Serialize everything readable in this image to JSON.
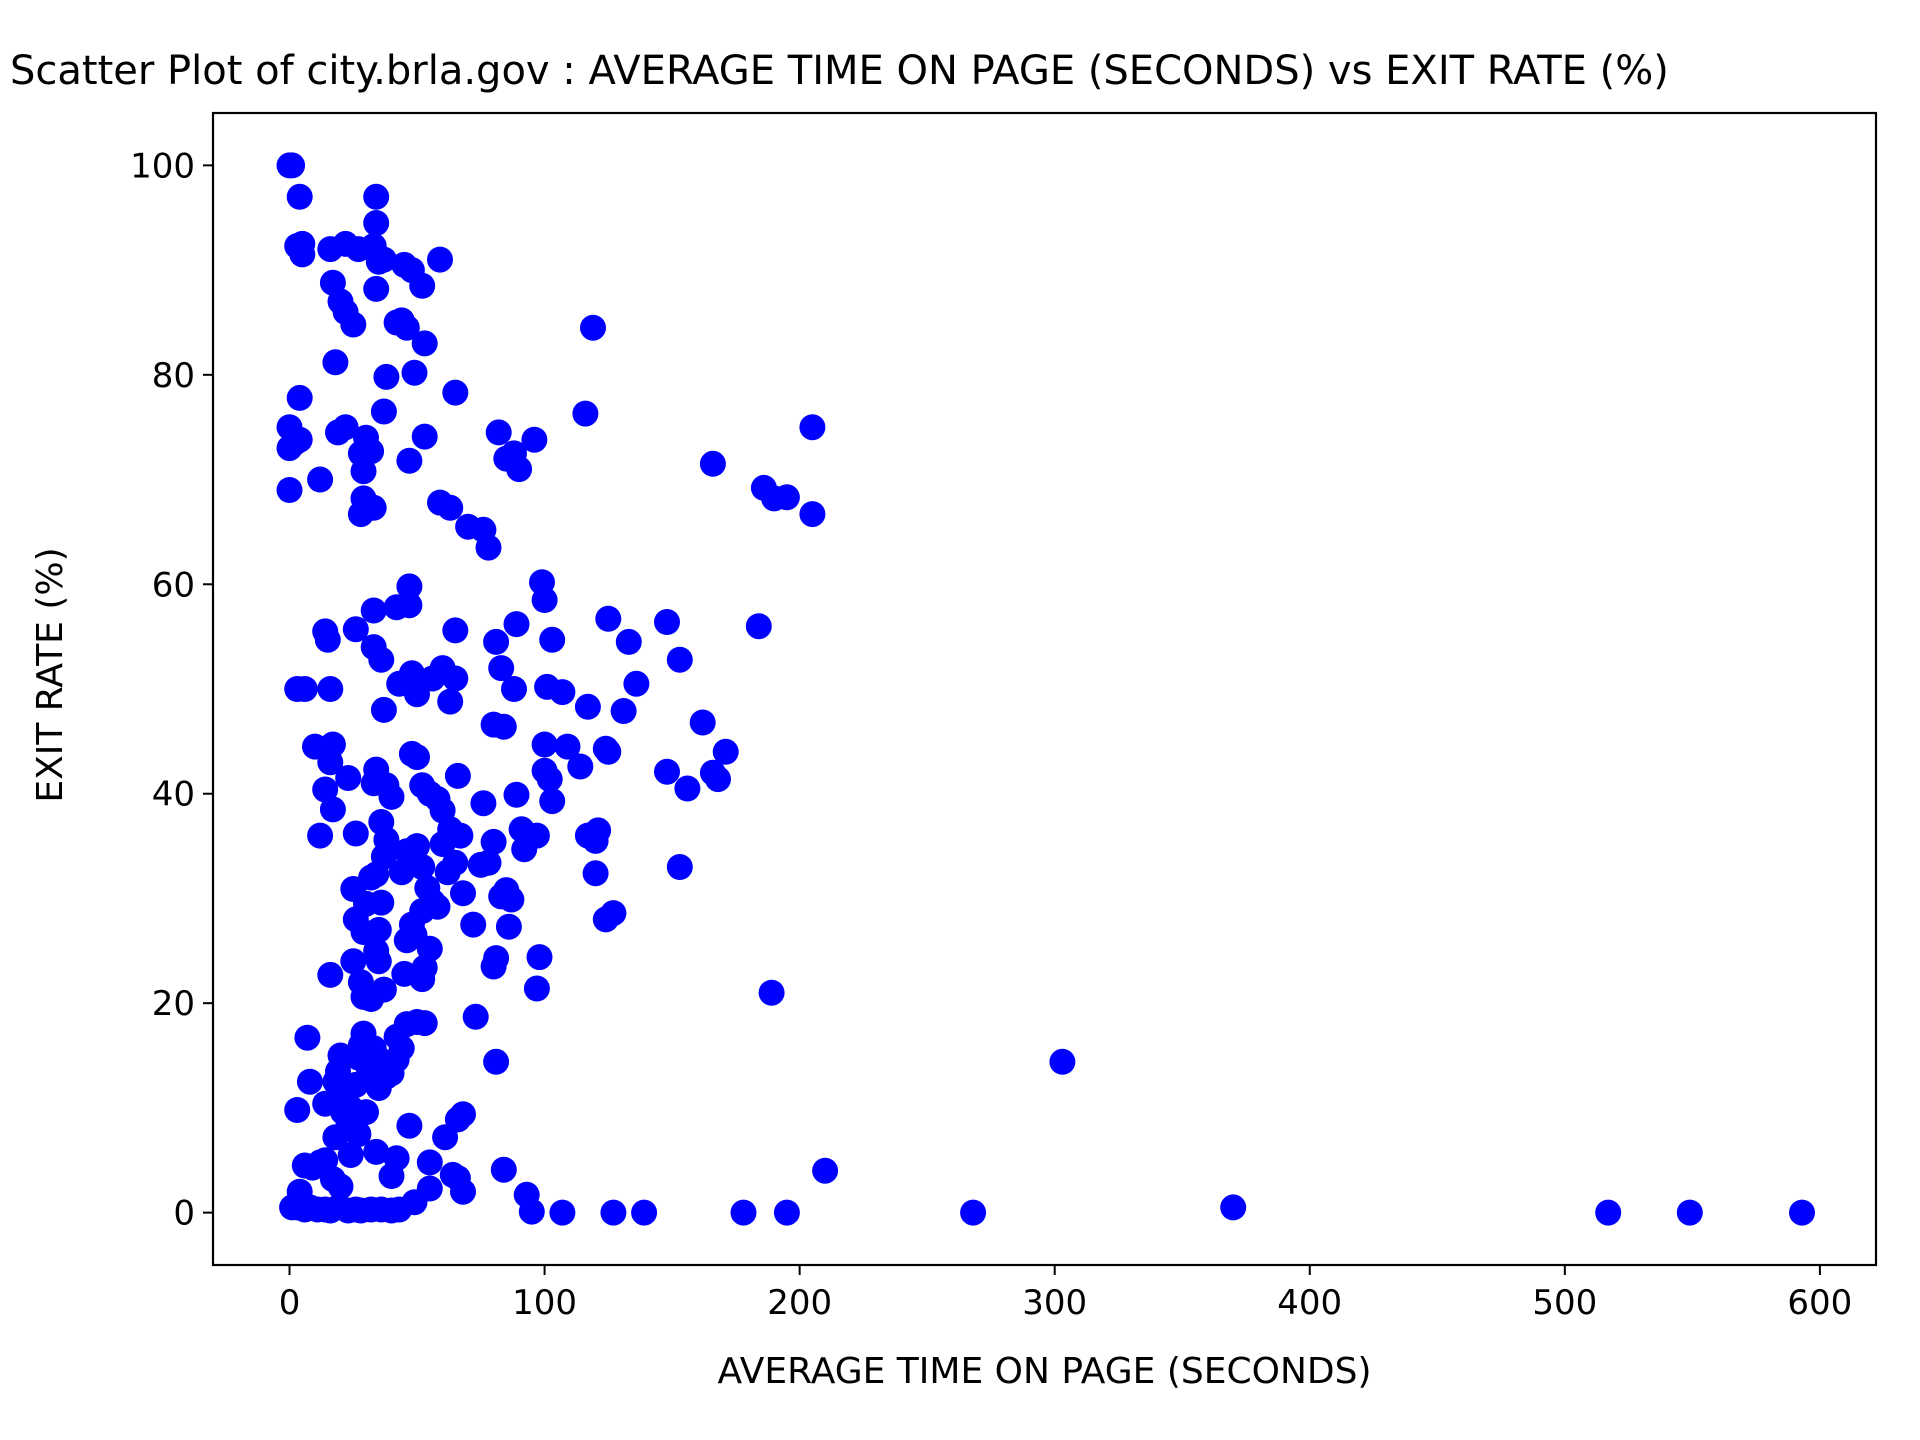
{
  "chart_data": {
    "type": "scatter",
    "title": "Scatter Plot of city.brla.gov : AVERAGE TIME ON PAGE (SECONDS) vs EXIT RATE (%)",
    "xlabel": "AVERAGE TIME ON PAGE (SECONDS)",
    "ylabel": "EXIT RATE (%)",
    "xlim": [
      -30,
      622
    ],
    "ylim": [
      -5,
      105
    ],
    "xticks": [
      0,
      100,
      200,
      300,
      400,
      500,
      600
    ],
    "yticks": [
      0,
      20,
      40,
      60,
      80,
      100
    ],
    "grid": false,
    "legend": "none",
    "marker_color": "#0000ff",
    "points": [
      [
        0,
        100
      ],
      [
        1,
        100
      ],
      [
        4,
        97
      ],
      [
        3,
        92.3
      ],
      [
        5,
        92.5
      ],
      [
        5,
        91.5
      ],
      [
        0,
        75
      ],
      [
        0,
        73
      ],
      [
        2,
        73.5
      ],
      [
        4,
        73.8
      ],
      [
        0,
        69
      ],
      [
        4,
        77.8
      ],
      [
        16,
        92
      ],
      [
        22,
        92.5
      ],
      [
        27,
        92
      ],
      [
        34,
        97
      ],
      [
        34,
        94.5
      ],
      [
        33,
        92.3
      ],
      [
        35,
        90.8
      ],
      [
        37,
        91
      ],
      [
        45,
        90.5
      ],
      [
        48,
        90
      ],
      [
        59,
        91
      ],
      [
        52,
        88.5
      ],
      [
        34,
        88.2
      ],
      [
        17,
        88.8
      ],
      [
        20,
        87
      ],
      [
        22,
        86
      ],
      [
        25,
        84.8
      ],
      [
        42,
        85
      ],
      [
        44,
        85.2
      ],
      [
        46,
        84.5
      ],
      [
        53,
        83
      ],
      [
        18,
        81.2
      ],
      [
        38,
        79.8
      ],
      [
        49,
        80.2
      ],
      [
        65,
        78.3
      ],
      [
        37,
        76.5
      ],
      [
        12,
        70
      ],
      [
        19,
        74.5
      ],
      [
        22,
        75
      ],
      [
        30,
        74
      ],
      [
        32,
        72.7
      ],
      [
        28,
        72.5
      ],
      [
        29,
        70.8
      ],
      [
        29,
        68.2
      ],
      [
        28,
        66.7
      ],
      [
        33,
        67.3
      ],
      [
        47,
        71.8
      ],
      [
        53,
        74.1
      ],
      [
        59,
        67.8
      ],
      [
        63,
        67.3
      ],
      [
        70,
        65.5
      ],
      [
        76,
        65.2
      ],
      [
        78,
        63.5
      ],
      [
        82,
        74.5
      ],
      [
        85,
        72
      ],
      [
        88,
        72.5
      ],
      [
        90,
        71
      ],
      [
        96,
        73.8
      ],
      [
        116,
        76.3
      ],
      [
        119,
        84.5
      ],
      [
        166,
        71.5
      ],
      [
        186,
        69.2
      ],
      [
        190,
        68.2
      ],
      [
        195,
        68.3
      ],
      [
        205,
        75
      ],
      [
        205,
        66.7
      ],
      [
        3,
        50
      ],
      [
        6,
        50
      ],
      [
        14,
        55.5
      ],
      [
        15,
        54.7
      ],
      [
        16,
        50
      ],
      [
        26,
        55.7
      ],
      [
        33,
        57.5
      ],
      [
        33,
        54
      ],
      [
        36,
        52.8
      ],
      [
        42,
        57.8
      ],
      [
        47,
        58
      ],
      [
        47,
        59.8
      ],
      [
        37,
        48
      ],
      [
        43,
        50.5
      ],
      [
        48,
        51.5
      ],
      [
        50,
        49.5
      ],
      [
        56,
        51
      ],
      [
        60,
        52
      ],
      [
        63,
        48.8
      ],
      [
        65,
        51
      ],
      [
        65,
        55.6
      ],
      [
        81,
        54.5
      ],
      [
        83,
        52
      ],
      [
        88,
        50
      ],
      [
        89,
        56.2
      ],
      [
        99,
        60.2
      ],
      [
        100,
        58.5
      ],
      [
        101,
        50.2
      ],
      [
        103,
        54.7
      ],
      [
        107,
        49.7
      ],
      [
        117,
        48.3
      ],
      [
        125,
        56.7
      ],
      [
        133,
        54.5
      ],
      [
        136,
        50.5
      ],
      [
        131,
        47.9
      ],
      [
        148,
        56.4
      ],
      [
        153,
        52.8
      ],
      [
        162,
        46.8
      ],
      [
        184,
        56
      ],
      [
        10,
        44.5
      ],
      [
        16,
        43
      ],
      [
        17,
        44.7
      ],
      [
        23,
        41.5
      ],
      [
        14,
        40.4
      ],
      [
        17,
        38.5
      ],
      [
        12,
        36
      ],
      [
        26,
        36.2
      ],
      [
        34,
        42.3
      ],
      [
        33,
        41
      ],
      [
        38,
        40.8
      ],
      [
        40,
        39.7
      ],
      [
        36,
        37.3
      ],
      [
        38,
        35.6
      ],
      [
        37,
        34
      ],
      [
        48,
        43.8
      ],
      [
        50,
        43.5
      ],
      [
        52,
        40.8
      ],
      [
        55,
        40
      ],
      [
        58,
        39.5
      ],
      [
        60,
        38.4
      ],
      [
        66,
        41.7
      ],
      [
        63,
        36.6
      ],
      [
        67,
        36
      ],
      [
        76,
        39.1
      ],
      [
        80,
        46.6
      ],
      [
        84,
        46.4
      ],
      [
        89,
        39.9
      ],
      [
        91,
        36.6
      ],
      [
        92,
        34.7
      ],
      [
        97,
        36
      ],
      [
        100,
        44.7
      ],
      [
        102,
        41.4
      ],
      [
        100,
        42.2
      ],
      [
        103,
        39.3
      ],
      [
        109,
        44.5
      ],
      [
        114,
        42.6
      ],
      [
        117,
        36
      ],
      [
        120,
        35.5
      ],
      [
        121,
        36.5
      ],
      [
        120,
        32.4
      ],
      [
        124,
        44.3
      ],
      [
        125,
        44
      ],
      [
        148,
        42.1
      ],
      [
        156,
        40.5
      ],
      [
        166,
        42
      ],
      [
        168,
        41.4
      ],
      [
        171,
        44
      ],
      [
        153,
        33
      ],
      [
        25,
        30.9
      ],
      [
        26,
        28
      ],
      [
        29,
        26.8
      ],
      [
        30,
        29.5
      ],
      [
        32,
        32
      ],
      [
        34,
        32.3
      ],
      [
        36,
        29.6
      ],
      [
        35,
        27
      ],
      [
        34,
        25
      ],
      [
        35,
        24
      ],
      [
        25,
        24
      ],
      [
        28,
        22
      ],
      [
        29,
        20.6
      ],
      [
        32,
        20.4
      ],
      [
        37,
        21.3
      ],
      [
        44,
        32.5
      ],
      [
        46,
        34.5
      ],
      [
        48,
        33.5
      ],
      [
        50,
        35
      ],
      [
        52,
        33
      ],
      [
        54,
        31
      ],
      [
        56,
        29.7
      ],
      [
        58,
        29.2
      ],
      [
        48,
        27.5
      ],
      [
        46,
        26
      ],
      [
        52,
        28.8
      ],
      [
        55,
        25.2
      ],
      [
        53,
        23.4
      ],
      [
        52,
        22.3
      ],
      [
        45,
        22.8
      ],
      [
        49,
        26.5
      ],
      [
        60,
        35.2
      ],
      [
        62,
        32.5
      ],
      [
        65,
        33.4
      ],
      [
        68,
        30.5
      ],
      [
        72,
        27.5
      ],
      [
        75,
        33.2
      ],
      [
        78,
        33.4
      ],
      [
        80,
        35.4
      ],
      [
        83,
        30.2
      ],
      [
        85,
        30.8
      ],
      [
        87,
        29.9
      ],
      [
        86,
        27.3
      ],
      [
        80,
        23.5
      ],
      [
        81,
        24.3
      ],
      [
        98,
        24.4
      ],
      [
        97,
        21.4
      ],
      [
        124,
        28
      ],
      [
        127,
        28.6
      ],
      [
        189,
        21
      ],
      [
        16,
        22.7
      ],
      [
        7,
        16.7
      ],
      [
        8,
        12.5
      ],
      [
        3,
        9.8
      ],
      [
        14,
        10.4
      ],
      [
        18,
        12.5
      ],
      [
        19,
        13.5
      ],
      [
        20,
        15
      ],
      [
        22,
        11
      ],
      [
        24,
        10
      ],
      [
        26,
        12.2
      ],
      [
        27,
        14.8
      ],
      [
        28,
        16
      ],
      [
        29,
        17.1
      ],
      [
        30,
        14.5
      ],
      [
        31,
        13.8
      ],
      [
        33,
        15.7
      ],
      [
        34,
        12.8
      ],
      [
        35,
        11.9
      ],
      [
        36,
        14.5
      ],
      [
        38,
        13
      ],
      [
        40,
        13.3
      ],
      [
        42,
        16.8
      ],
      [
        42,
        14.6
      ],
      [
        44,
        15.7
      ],
      [
        46,
        18
      ],
      [
        50,
        18.2
      ],
      [
        53,
        18.1
      ],
      [
        47,
        8.3
      ],
      [
        73,
        18.7
      ],
      [
        81,
        14.4
      ],
      [
        18,
        7.2
      ],
      [
        21,
        9.6
      ],
      [
        23,
        8.8
      ],
      [
        27,
        7.5
      ],
      [
        30,
        9.6
      ],
      [
        24,
        5.5
      ],
      [
        34,
        5.8
      ],
      [
        42,
        5.2
      ],
      [
        40,
        3.5
      ],
      [
        55,
        4.8
      ],
      [
        61,
        7.2
      ],
      [
        66,
        8.9
      ],
      [
        68,
        9.4
      ],
      [
        64,
        3.6
      ],
      [
        66,
        3.3
      ],
      [
        84,
        4.1
      ],
      [
        6,
        4.5
      ],
      [
        9,
        4.3
      ],
      [
        12,
        4.8
      ],
      [
        14,
        5
      ],
      [
        17,
        3.2
      ],
      [
        20,
        2.5
      ],
      [
        4,
        2
      ],
      [
        1,
        0.5
      ],
      [
        3,
        0.5
      ],
      [
        6,
        0.3
      ],
      [
        8,
        0.5
      ],
      [
        11,
        0.3
      ],
      [
        14,
        0.3
      ],
      [
        16,
        0.2
      ],
      [
        19,
        0.5
      ],
      [
        23,
        0.2
      ],
      [
        26,
        0.3
      ],
      [
        28,
        0.2
      ],
      [
        32,
        0.3
      ],
      [
        36,
        0.3
      ],
      [
        40,
        0.2
      ],
      [
        43,
        0.3
      ],
      [
        49,
        1
      ],
      [
        55,
        2.3
      ],
      [
        68,
        2
      ],
      [
        93,
        1.7
      ],
      [
        95,
        0.1
      ],
      [
        107,
        0
      ],
      [
        127,
        0
      ],
      [
        139,
        0
      ],
      [
        178,
        0
      ],
      [
        195,
        0
      ],
      [
        210,
        4
      ],
      [
        268,
        0
      ],
      [
        303,
        14.4
      ],
      [
        370,
        0.5
      ],
      [
        517,
        0
      ],
      [
        549,
        0
      ],
      [
        593,
        0
      ]
    ]
  }
}
